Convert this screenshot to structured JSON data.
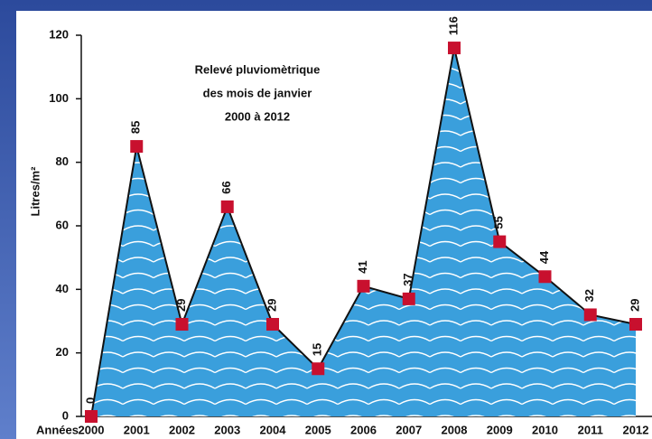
{
  "chart_data": {
    "type": "area",
    "title": [
      "Relevé pluviomètrique",
      "des mois de janvier",
      "2000 à 2012"
    ],
    "x_label": "Années",
    "y_label": "Litres/m²",
    "categories": [
      "2000",
      "2001",
      "2002",
      "2003",
      "2004",
      "2005",
      "2006",
      "2007",
      "2008",
      "2009",
      "2010",
      "2011",
      "2012"
    ],
    "values": [
      0,
      85,
      29,
      66,
      29,
      15,
      41,
      37,
      116,
      55,
      44,
      32,
      29
    ],
    "ylim": [
      0,
      120
    ],
    "yticks": [
      0,
      20,
      40,
      60,
      80,
      100,
      120
    ],
    "color": "#3a9fdc",
    "marker_color": "#c8102e",
    "label_color": "#c8102e"
  }
}
